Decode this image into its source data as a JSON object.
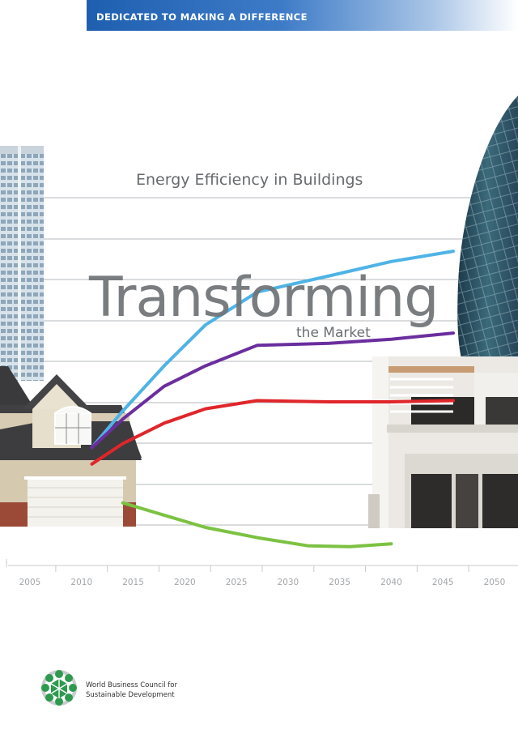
{
  "banner": {
    "text": "DEDICATED TO MAKING A DIFFERENCE"
  },
  "cover": {
    "heading": "Energy Efficiency in Buildings",
    "title": "Transforming",
    "subtitle": "the Market"
  },
  "chart_data": {
    "type": "line",
    "x": [
      2005,
      2010,
      2015,
      2020,
      2025,
      2030,
      2035,
      2040,
      2045,
      2050
    ],
    "tick_labels": [
      "2005",
      "2010",
      "2015",
      "2020",
      "2025",
      "2030",
      "2035",
      "2040",
      "2045",
      "2050"
    ],
    "title": "",
    "xlabel": "",
    "ylabel": "",
    "grid": true,
    "series": [
      {
        "color": "#4fb3e6",
        "points": [
          [
            2011,
            0.9
          ],
          [
            2014,
            1.8
          ],
          [
            2018,
            2.9
          ],
          [
            2022,
            3.9
          ],
          [
            2027,
            4.7
          ],
          [
            2034,
            5.1
          ],
          [
            2040,
            5.45
          ],
          [
            2046,
            5.7
          ]
        ]
      },
      {
        "color": "#6a2e9e",
        "points": [
          [
            2011,
            0.9
          ],
          [
            2014,
            1.6
          ],
          [
            2018,
            2.4
          ],
          [
            2022,
            2.9
          ],
          [
            2027,
            3.4
          ],
          [
            2034,
            3.45
          ],
          [
            2040,
            3.55
          ],
          [
            2046,
            3.7
          ]
        ]
      },
      {
        "color": "#e0262b",
        "points": [
          [
            2011,
            0.5
          ],
          [
            2014,
            1.0
          ],
          [
            2018,
            1.5
          ],
          [
            2022,
            1.85
          ],
          [
            2027,
            2.05
          ],
          [
            2034,
            2.02
          ],
          [
            2040,
            2.02
          ],
          [
            2046,
            2.05
          ]
        ]
      },
      {
        "color": "#7cc242",
        "points": [
          [
            2014,
            -0.45
          ],
          [
            2018,
            -0.75
          ],
          [
            2022,
            -1.05
          ],
          [
            2027,
            -1.3
          ],
          [
            2032,
            -1.5
          ],
          [
            2036,
            -1.52
          ],
          [
            2040,
            -1.45
          ]
        ]
      }
    ]
  },
  "footer": {
    "org_line1": "World Business Council for",
    "org_line2": "Sustainable Development"
  }
}
